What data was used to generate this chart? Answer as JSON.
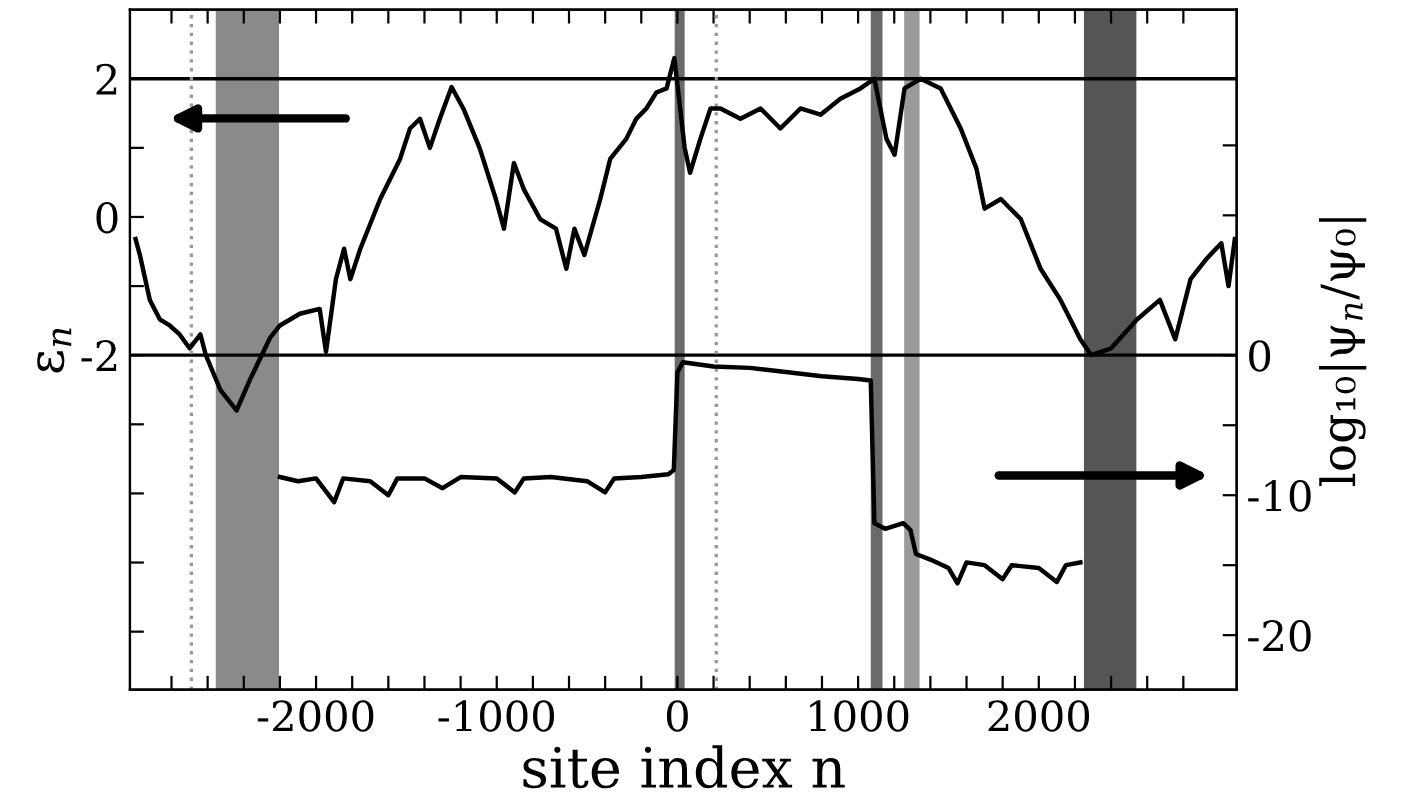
{
  "chart_data": {
    "type": "line",
    "xlabel": "site index n",
    "ylabel": "ε$_{n}$",
    "y2label": "log₁₀|ψ$_{n}$/ψ₀|",
    "xlim": [
      -3030,
      3095
    ],
    "xticks": [
      {
        "value": -2800,
        "label": null
      },
      {
        "value": -2600,
        "label": null
      },
      {
        "value": -2400,
        "label": null
      },
      {
        "value": -2200,
        "label": null
      },
      -2000,
      {
        "value": -1800,
        "label": null
      },
      {
        "value": -1600,
        "label": null
      },
      {
        "value": -1400,
        "label": null
      },
      {
        "value": -1200,
        "label": null
      },
      -1000,
      {
        "value": -800,
        "label": null
      },
      {
        "value": -600,
        "label": null
      },
      {
        "value": -400,
        "label": null
      },
      {
        "value": -200,
        "label": null
      },
      0,
      {
        "value": 200,
        "label": null
      },
      {
        "value": 400,
        "label": null
      },
      {
        "value": 600,
        "label": null
      },
      {
        "value": 800,
        "label": null
      },
      1000,
      {
        "value": 1200,
        "label": null
      },
      {
        "value": 1400,
        "label": null
      },
      {
        "value": 1600,
        "label": null
      },
      {
        "value": 1800,
        "label": null
      },
      2000,
      {
        "value": 2200,
        "label": null
      },
      {
        "value": 2400,
        "label": null
      },
      {
        "value": 2600,
        "label": null
      },
      {
        "value": 2800,
        "label": null
      }
    ],
    "ylim": [
      -6.84,
      3.0
    ],
    "yticks": [
      2,
      {
        "value": 1,
        "label": null
      },
      0,
      {
        "value": -1,
        "label": null
      },
      -2,
      {
        "value": -3,
        "label": null
      },
      {
        "value": -4,
        "label": null
      },
      {
        "value": -5,
        "label": null
      },
      {
        "value": -6,
        "label": null
      }
    ],
    "y2lim": [
      -23.9,
      24.7
    ],
    "y2ticks": [
      {
        "value": 15,
        "label": null
      },
      {
        "value": 10,
        "label": null
      },
      0,
      {
        "value": -5,
        "label": null
      },
      -10,
      {
        "value": -15,
        "label": null
      },
      -20
    ],
    "grid": false,
    "legend": false,
    "line_style": "solid",
    "marker": "none",
    "series": [
      {
        "color": "#000000",
        "x": [
          -2999,
          -2975,
          -2920,
          -2865,
          -2810,
          -2755,
          -2700,
          -2640,
          -2610,
          -2530,
          -2440,
          -2365,
          -2255,
          -2200,
          -2090,
          -1980,
          -1945,
          -1890,
          -1845,
          -1810,
          -1755,
          -1645,
          -1535,
          -1480,
          -1425,
          -1370,
          -1315,
          -1250,
          -1185,
          -1095,
          -1005,
          -960,
          -905,
          -850,
          -760,
          -672,
          -615,
          -570,
          -515,
          -427,
          -372,
          -283,
          -228,
          -172,
          -117,
          -60,
          -17,
          40,
          70,
          127,
          183,
          238,
          349,
          460,
          570,
          681,
          792,
          902,
          1013,
          1090,
          1157,
          1202,
          1257,
          1346,
          1457,
          1568,
          1655,
          1700,
          1790,
          1900,
          2010,
          2120,
          2230,
          2290,
          2400,
          2545,
          2670,
          2755,
          2840,
          2930,
          3010,
          3050,
          3085
        ],
        "values": [
          -0.32,
          -0.55,
          -1.2,
          -1.48,
          -1.57,
          -1.7,
          -1.9,
          -1.7,
          -2.0,
          -2.5,
          -2.8,
          -2.35,
          -1.75,
          -1.57,
          -1.4,
          -1.33,
          -1.95,
          -0.9,
          -0.46,
          -0.9,
          -0.46,
          0.26,
          0.84,
          1.28,
          1.42,
          1.0,
          1.42,
          1.88,
          1.57,
          1.0,
          0.26,
          -0.17,
          0.78,
          0.4,
          -0.03,
          -0.17,
          -0.75,
          -0.17,
          -0.55,
          0.26,
          0.84,
          1.13,
          1.42,
          1.57,
          1.8,
          1.86,
          2.3,
          1.0,
          0.64,
          1.13,
          1.57,
          1.57,
          1.42,
          1.57,
          1.28,
          1.57,
          1.48,
          1.71,
          1.86,
          2.0,
          1.13,
          0.9,
          1.86,
          2.0,
          1.86,
          1.28,
          0.7,
          0.12,
          0.26,
          -0.03,
          -0.75,
          -1.2,
          -1.77,
          -2.0,
          -1.9,
          -1.48,
          -1.2,
          -1.77,
          -0.9,
          -0.6,
          -0.38,
          -1.0,
          -0.32
        ]
      },
      {
        "color": "#000000",
        "axis": "y2",
        "x": [
          -2200,
          -2100,
          -2000,
          -1900,
          -1850,
          -1700,
          -1600,
          -1550,
          -1400,
          -1300,
          -1200,
          -1000,
          -900,
          -850,
          -700,
          -500,
          -400,
          -350,
          -200,
          -50,
          -20,
          0,
          30,
          200,
          400,
          600,
          800,
          1000,
          1070,
          1090,
          1150,
          1250,
          1290,
          1320,
          1400,
          1500,
          1550,
          1600,
          1700,
          1800,
          1850,
          2000,
          2100,
          2150,
          2230
        ],
        "values": [
          -8.7,
          -9.0,
          -8.8,
          -10.5,
          -8.8,
          -9.0,
          -10.0,
          -8.8,
          -8.8,
          -9.5,
          -8.7,
          -8.8,
          -9.8,
          -8.8,
          -8.7,
          -9.0,
          -9.8,
          -8.8,
          -8.7,
          -8.5,
          -8.2,
          -1.2,
          -0.5,
          -0.8,
          -0.9,
          -1.2,
          -1.5,
          -1.7,
          -1.8,
          -12.0,
          -12.4,
          -12.0,
          -12.5,
          -14.2,
          -14.6,
          -15.2,
          -16.3,
          -14.8,
          -15.0,
          -16.0,
          -15.0,
          -15.2,
          -16.2,
          -15.0,
          -14.8
        ]
      }
    ],
    "ref_lines": [
      {
        "axis": "y",
        "value": 2,
        "color": "#000000",
        "line_style": "solid"
      },
      {
        "axis": "y",
        "value": -2,
        "color": "#000000",
        "line_style": "solid"
      },
      {
        "axis": "x",
        "value": -2690,
        "color": "#999999",
        "line_style": "dotted"
      },
      {
        "axis": "x",
        "value": 215,
        "color": "#999999",
        "line_style": "dotted"
      }
    ],
    "bands": [
      {
        "axis": "x",
        "from": -2555,
        "to": -2205,
        "color": "#8a8a8a"
      },
      {
        "axis": "x",
        "from": -15,
        "to": 40,
        "color": "#6a6a6a"
      },
      {
        "axis": "x",
        "from": 1070,
        "to": 1135,
        "color": "#6a6a6a"
      },
      {
        "axis": "x",
        "from": 1255,
        "to": 1340,
        "color": "#9a9a9a"
      },
      {
        "axis": "x",
        "from": 2250,
        "to": 2540,
        "color": "#555555"
      }
    ]
  }
}
